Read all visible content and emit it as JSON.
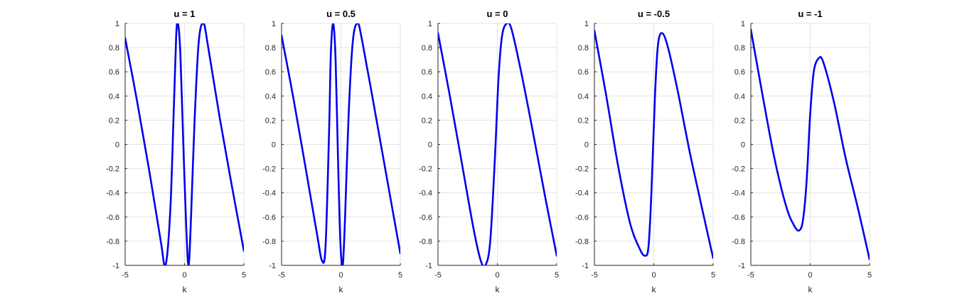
{
  "chart_data": [
    {
      "type": "line",
      "title": "u = 1",
      "xlabel": "k",
      "ylabel": "",
      "xlim": [
        -5,
        5
      ],
      "ylim": [
        -1,
        1
      ],
      "xticks": [
        "-5",
        "0",
        "5"
      ],
      "yticks": [
        "1",
        "0.8",
        "0.6",
        "0.4",
        "0.2",
        "0",
        "-0.2",
        "-0.4",
        "-0.6",
        "-0.8",
        "-1"
      ],
      "grid": true,
      "series": [
        {
          "color": "#0000ee",
          "points": [
            [
              -5,
              0.88
            ],
            [
              -4,
              0.36
            ],
            [
              -3,
              -0.2
            ],
            [
              -2,
              -0.8
            ],
            [
              -1.6,
              -1.0
            ],
            [
              -1.2,
              -0.55
            ],
            [
              -0.9,
              0.3
            ],
            [
              -0.7,
              0.9
            ],
            [
              -0.55,
              1.0
            ],
            [
              -0.35,
              0.75
            ],
            [
              -0.1,
              0.0
            ],
            [
              0.15,
              -0.7
            ],
            [
              0.35,
              -1.0
            ],
            [
              0.55,
              -0.6
            ],
            [
              0.85,
              0.2
            ],
            [
              1.2,
              0.85
            ],
            [
              1.6,
              1.0
            ],
            [
              2.0,
              0.8
            ],
            [
              3.0,
              0.2
            ],
            [
              4.0,
              -0.35
            ],
            [
              5,
              -0.88
            ]
          ]
        }
      ]
    },
    {
      "type": "line",
      "title": "u = 0.5",
      "xlabel": "k",
      "ylabel": "",
      "xlim": [
        -5,
        5
      ],
      "ylim": [
        -1,
        1
      ],
      "xticks": [
        "-5",
        "0",
        "5"
      ],
      "yticks": [
        "1",
        "0.8",
        "0.6",
        "0.4",
        "0.2",
        "0",
        "-0.2",
        "-0.4",
        "-0.6",
        "-0.8",
        "-1"
      ],
      "grid": true,
      "series": [
        {
          "color": "#0000ee",
          "points": [
            [
              -5,
              0.9
            ],
            [
              -4,
              0.38
            ],
            [
              -3,
              -0.18
            ],
            [
              -2,
              -0.75
            ],
            [
              -1.6,
              -0.96
            ],
            [
              -1.3,
              -0.85
            ],
            [
              -1.0,
              0.1
            ],
            [
              -0.85,
              0.75
            ],
            [
              -0.65,
              1.0
            ],
            [
              -0.45,
              0.7
            ],
            [
              -0.25,
              -0.1
            ],
            [
              -0.05,
              -0.8
            ],
            [
              0.15,
              -1.0
            ],
            [
              0.35,
              -0.6
            ],
            [
              0.65,
              0.25
            ],
            [
              1.0,
              0.85
            ],
            [
              1.4,
              1.0
            ],
            [
              1.8,
              0.85
            ],
            [
              3.0,
              0.2
            ],
            [
              4.0,
              -0.35
            ],
            [
              5,
              -0.9
            ]
          ]
        }
      ]
    },
    {
      "type": "line",
      "title": "u = 0",
      "xlabel": "k",
      "ylabel": "",
      "xlim": [
        -5,
        5
      ],
      "ylim": [
        -1,
        1
      ],
      "xticks": [
        "-5",
        "0",
        "5"
      ],
      "yticks": [
        "1",
        "0.8",
        "0.6",
        "0.4",
        "0.2",
        "0",
        "-0.2",
        "-0.4",
        "-0.6",
        "-0.8",
        "-1"
      ],
      "grid": true,
      "series": [
        {
          "color": "#0000ee",
          "points": [
            [
              -5,
              0.92
            ],
            [
              -4,
              0.4
            ],
            [
              -3,
              -0.15
            ],
            [
              -2,
              -0.7
            ],
            [
              -1.4,
              -0.96
            ],
            [
              -1.0,
              -1.0
            ],
            [
              -0.6,
              -0.8
            ],
            [
              -0.2,
              -0.1
            ],
            [
              0.1,
              0.55
            ],
            [
              0.4,
              0.9
            ],
            [
              0.8,
              1.0
            ],
            [
              1.2,
              0.95
            ],
            [
              2.0,
              0.6
            ],
            [
              3.0,
              0.1
            ],
            [
              4.0,
              -0.42
            ],
            [
              5,
              -0.92
            ]
          ]
        }
      ]
    },
    {
      "type": "line",
      "title": "u = -0.5",
      "xlabel": "k",
      "ylabel": "",
      "xlim": [
        -5,
        5
      ],
      "ylim": [
        -1,
        1
      ],
      "xticks": [
        "-5",
        "0",
        "5"
      ],
      "yticks": [
        "1",
        "0.8",
        "0.6",
        "0.4",
        "0.2",
        "0",
        "-0.2",
        "-0.4",
        "-0.6",
        "-0.8",
        "-1"
      ],
      "grid": true,
      "series": [
        {
          "color": "#0000ee",
          "points": [
            [
              -5,
              0.94
            ],
            [
              -4,
              0.4
            ],
            [
              -3,
              -0.18
            ],
            [
              -2,
              -0.65
            ],
            [
              -1.2,
              -0.86
            ],
            [
              -0.75,
              -0.92
            ],
            [
              -0.45,
              -0.85
            ],
            [
              -0.2,
              -0.4
            ],
            [
              0.1,
              0.4
            ],
            [
              0.35,
              0.82
            ],
            [
              0.7,
              0.92
            ],
            [
              1.2,
              0.8
            ],
            [
              2.0,
              0.45
            ],
            [
              3.0,
              -0.05
            ],
            [
              4.0,
              -0.5
            ],
            [
              5,
              -0.94
            ]
          ]
        }
      ]
    },
    {
      "type": "line",
      "title": "u = -1",
      "xlabel": "k",
      "ylabel": "",
      "xlim": [
        -5,
        5
      ],
      "ylim": [
        -1,
        1
      ],
      "xticks": [
        "-5",
        "0",
        "5"
      ],
      "yticks": [
        "1",
        "0.8",
        "0.6",
        "0.4",
        "0.2",
        "0",
        "-0.2",
        "-0.4",
        "-0.6",
        "-0.8",
        "-1"
      ],
      "grid": true,
      "series": [
        {
          "color": "#0000ee",
          "points": [
            [
              -5,
              0.95
            ],
            [
              -4,
              0.4
            ],
            [
              -3,
              -0.12
            ],
            [
              -2,
              -0.52
            ],
            [
              -1.3,
              -0.68
            ],
            [
              -0.9,
              -0.71
            ],
            [
              -0.6,
              -0.62
            ],
            [
              -0.3,
              -0.3
            ],
            [
              0.0,
              0.25
            ],
            [
              0.3,
              0.6
            ],
            [
              0.7,
              0.71
            ],
            [
              1.1,
              0.68
            ],
            [
              2.0,
              0.35
            ],
            [
              3.0,
              -0.12
            ],
            [
              4.0,
              -0.52
            ],
            [
              5,
              -0.95
            ]
          ]
        }
      ]
    }
  ]
}
